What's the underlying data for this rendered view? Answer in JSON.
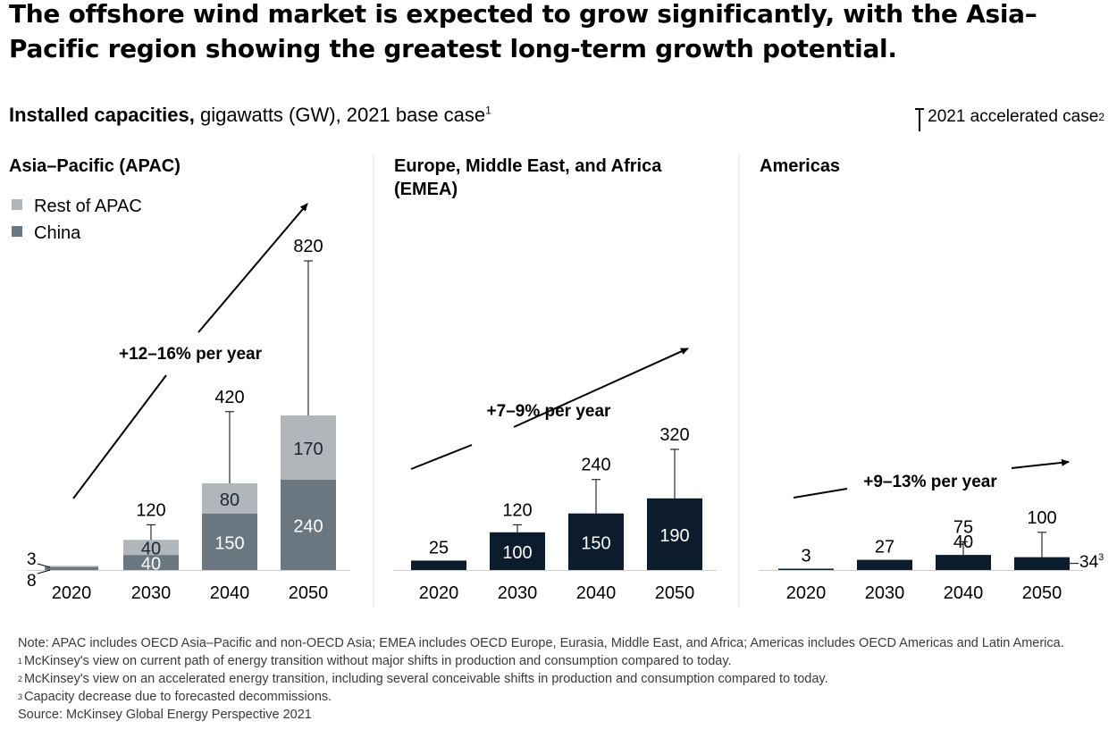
{
  "title": "The offshore wind market is expected to grow significantly, with the Asia–Pacific region showing the greatest long-term growth potential.",
  "subtitle": {
    "bold": "Installed capacities,",
    "rest": " gigawatts (GW), 2021 base case",
    "sup": "1"
  },
  "accelerated_legend": {
    "label": "2021 accelerated case",
    "sup": "2"
  },
  "colors": {
    "china": "#6b7780",
    "rest_apac": "#b1b6ba",
    "dark_bar": "#0c1c2c",
    "axis": "#cccccc",
    "divider": "#e3e3e3"
  },
  "chart_data": [
    {
      "type": "bar",
      "stacked": true,
      "title": "Asia–Pacific (APAC)",
      "categories": [
        "2020",
        "2030",
        "2040",
        "2050"
      ],
      "series": [
        {
          "name": "China",
          "values": [
            8,
            40,
            150,
            240
          ]
        },
        {
          "name": "Rest of APAC",
          "values": [
            3,
            40,
            80,
            170
          ]
        }
      ],
      "segment_labels": {
        "China": [
          "8",
          "40",
          "150",
          "240"
        ],
        "Rest of APAC": [
          "3",
          "40",
          "80",
          "170"
        ]
      },
      "accelerated_case": [
        null,
        120,
        420,
        820
      ],
      "accelerated_labels": [
        "",
        "120",
        "420",
        "820"
      ],
      "growth_label": "+12–16% per year",
      "legend": [
        "Rest of APAC",
        "China"
      ]
    },
    {
      "type": "bar",
      "title": "Europe, Middle East, and Africa (EMEA)",
      "categories": [
        "2020",
        "2030",
        "2040",
        "2050"
      ],
      "values": [
        25,
        100,
        150,
        190
      ],
      "value_labels": [
        "25",
        "100",
        "150",
        "190"
      ],
      "accelerated_case": [
        null,
        120,
        240,
        320
      ],
      "accelerated_labels": [
        "",
        "120",
        "240",
        "320"
      ],
      "growth_label": "+7–9% per year"
    },
    {
      "type": "bar",
      "title": "Americas",
      "categories": [
        "2020",
        "2030",
        "2040",
        "2050"
      ],
      "values": [
        3,
        27,
        40,
        34
      ],
      "value_labels": [
        "3",
        "27",
        "40",
        "34"
      ],
      "value_label_sup": [
        "",
        "",
        "",
        "3"
      ],
      "accelerated_case": [
        null,
        null,
        75,
        100
      ],
      "accelerated_labels": [
        "",
        "",
        "75",
        "100"
      ],
      "growth_label": "+9–13% per year"
    }
  ],
  "footnotes": [
    {
      "sup": "",
      "text": "Note: APAC includes OECD Asia–Pacific and non-OECD Asia; EMEA includes OECD Europe, Eurasia, Middle East, and Africa; Americas includes OECD Americas and Latin America."
    },
    {
      "sup": "1",
      "text": "McKinsey's view on current path of energy transition without major shifts in production and consumption compared to today."
    },
    {
      "sup": "2",
      "text": "McKinsey's view on an accelerated energy transition, including several conceivable shifts in production and consumption compared to today."
    },
    {
      "sup": "3",
      "text": "Capacity decrease due to forecasted decommissions."
    },
    {
      "sup": "",
      "text": "Source: McKinsey Global Energy Perspective 2021"
    }
  ]
}
